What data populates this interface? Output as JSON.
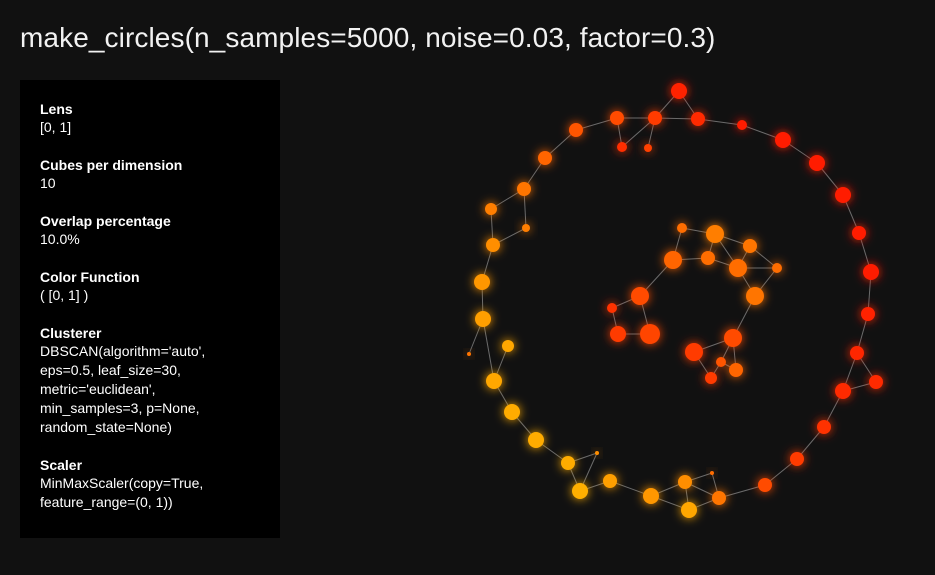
{
  "title": "make_circles(n_samples=5000, noise=0.03, factor=0.3)",
  "info_panel": {
    "items": [
      {
        "label": "Lens",
        "value": "[0, 1]"
      },
      {
        "label": "Cubes per dimension",
        "value": "10"
      },
      {
        "label": "Overlap percentage",
        "value": "10.0%"
      },
      {
        "label": "Color Function",
        "value": "( [0, 1] )"
      },
      {
        "label": "Clusterer",
        "value": "DBSCAN(algorithm='auto',\neps=0.5, leaf_size=30,\nmetric='euclidean',\nmin_samples=3, p=None,\nrandom_state=None)"
      },
      {
        "label": "Scaler",
        "value": "MinMaxScaler(copy=True,\nfeature_range=(0, 1))"
      }
    ]
  },
  "colors": {
    "background": "#111111",
    "panel": "#000000",
    "edge": "#6b6b6b",
    "color_low": "#ff1a00",
    "color_high": "#ffc000"
  }
}
